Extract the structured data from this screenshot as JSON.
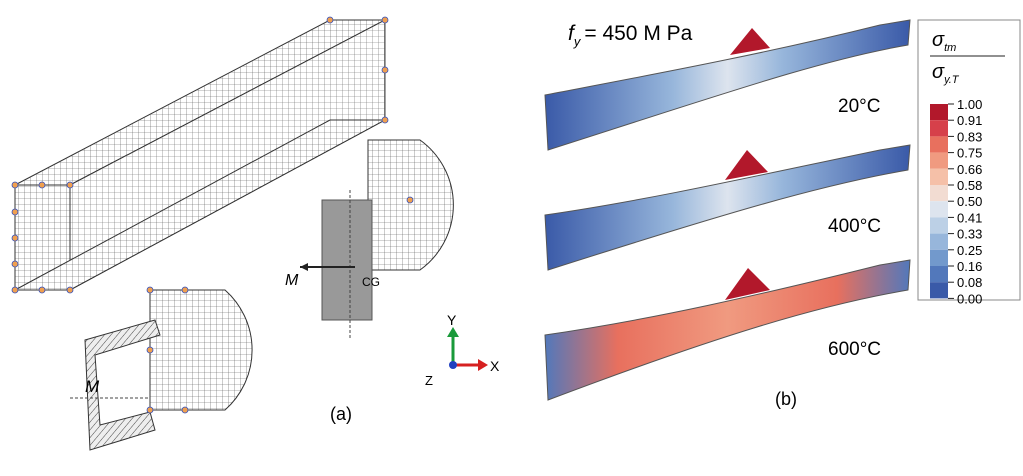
{
  "panel_a": {
    "label": "(a)",
    "moment_top": "M",
    "moment_bottom": "M",
    "cg": "CG",
    "axes": {
      "y": "Y",
      "x": "X",
      "z": "Z"
    }
  },
  "panel_b": {
    "label": "(b)",
    "yield": {
      "symbol": "f",
      "subscript": "y",
      "text": "= 450 M Pa"
    },
    "temperatures": [
      "20°C",
      "400°C",
      "600°C"
    ],
    "legend": {
      "numerator": {
        "symbol": "σ",
        "subscript": "tm"
      },
      "denominator": {
        "symbol": "σ",
        "subscript": "y.T"
      },
      "ticks": [
        "1.00",
        "0.91",
        "0.83",
        "0.75",
        "0.66",
        "0.58",
        "0.50",
        "0.41",
        "0.33",
        "0.25",
        "0.16",
        "0.08",
        "0.00"
      ],
      "colors": [
        "#b2182b",
        "#d6404a",
        "#e8705e",
        "#f09a80",
        "#f5c0a8",
        "#f2dcd2",
        "#dde4ee",
        "#bcd0e6",
        "#97b6db",
        "#7299cc",
        "#5278bb",
        "#3a5aa8"
      ]
    }
  }
}
